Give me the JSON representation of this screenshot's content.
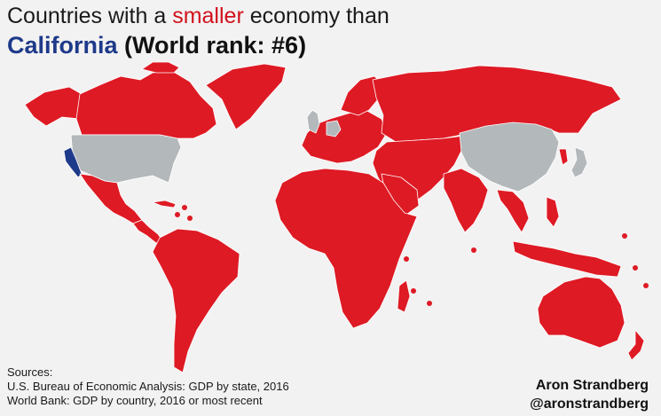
{
  "title": {
    "line1_pre": "Countries with a ",
    "line1_highlight": "smaller",
    "line1_post": " economy than",
    "line2_highlight": "California",
    "line2_post": " (World rank: #6)"
  },
  "colors": {
    "smaller_economy": "#de1a24",
    "larger_economy": "#b3b8bb",
    "california": "#1e3a8a",
    "background": "#f3f2f2",
    "borders": "#ffffff"
  },
  "legend_meaning": {
    "red": "smaller economy than California",
    "gray": "larger economy than California",
    "blue": "California"
  },
  "larger_economies_shown_gray": [
    "United States (excluding California)",
    "China",
    "Japan",
    "Germany",
    "United Kingdom"
  ],
  "sources": {
    "heading": "Sources:",
    "line1": "U.S. Bureau of Economic Analysis: GDP by state, 2016",
    "line2": "World Bank: GDP by country, 2016 or most recent"
  },
  "author": {
    "name": "Aron Strandberg",
    "handle": "@aronstrandberg"
  }
}
